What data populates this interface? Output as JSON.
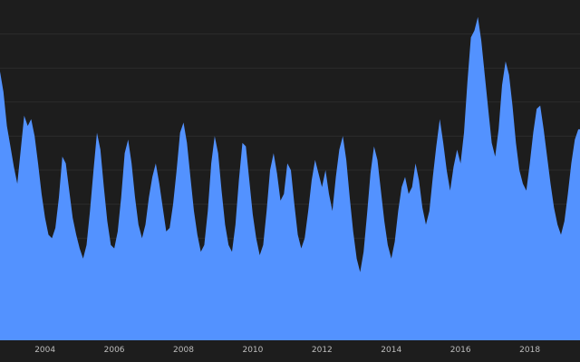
{
  "chart_data": {
    "type": "area",
    "title": "",
    "xlabel": "",
    "ylabel": "",
    "grid": true,
    "legend": "none",
    "colors": {
      "background": "#1d1d1d",
      "area_fill": "#5392ff",
      "gridline": "#2c2c2c",
      "axis_band": "#1d1d1d",
      "tick_text": "#bdbdbd"
    },
    "xlim": [
      2002.7,
      2019.45
    ],
    "ylim": [
      0,
      100
    ],
    "x_ticks": [
      {
        "x": 2004,
        "label": "2004"
      },
      {
        "x": 2006,
        "label": "2006"
      },
      {
        "x": 2008,
        "label": "2008"
      },
      {
        "x": 2010,
        "label": "2010"
      },
      {
        "x": 2012,
        "label": "2012"
      },
      {
        "x": 2014,
        "label": "2014"
      },
      {
        "x": 2016,
        "label": "2016"
      },
      {
        "x": 2018,
        "label": "2018"
      }
    ],
    "y_gridlines": [
      10,
      20,
      30,
      40,
      50,
      60,
      70,
      80,
      90
    ],
    "series": [
      {
        "values": [
          [
            2002.7,
            79
          ],
          [
            2002.8,
            73
          ],
          [
            2002.9,
            63
          ],
          [
            2003.0,
            57
          ],
          [
            2003.1,
            51
          ],
          [
            2003.2,
            46
          ],
          [
            2003.3,
            56
          ],
          [
            2003.4,
            66
          ],
          [
            2003.5,
            63
          ],
          [
            2003.6,
            65
          ],
          [
            2003.7,
            60
          ],
          [
            2003.8,
            52
          ],
          [
            2003.9,
            43
          ],
          [
            2004.0,
            36
          ],
          [
            2004.1,
            31
          ],
          [
            2004.2,
            30
          ],
          [
            2004.3,
            33
          ],
          [
            2004.4,
            42
          ],
          [
            2004.5,
            54
          ],
          [
            2004.6,
            52
          ],
          [
            2004.7,
            44
          ],
          [
            2004.8,
            36
          ],
          [
            2004.9,
            31
          ],
          [
            2005.0,
            27
          ],
          [
            2005.1,
            24
          ],
          [
            2005.2,
            28
          ],
          [
            2005.3,
            38
          ],
          [
            2005.4,
            50
          ],
          [
            2005.5,
            61
          ],
          [
            2005.6,
            56
          ],
          [
            2005.7,
            45
          ],
          [
            2005.8,
            35
          ],
          [
            2005.9,
            28
          ],
          [
            2006.0,
            27
          ],
          [
            2006.1,
            32
          ],
          [
            2006.2,
            42
          ],
          [
            2006.3,
            55
          ],
          [
            2006.4,
            59
          ],
          [
            2006.5,
            52
          ],
          [
            2006.6,
            42
          ],
          [
            2006.7,
            34
          ],
          [
            2006.8,
            30
          ],
          [
            2006.9,
            34
          ],
          [
            2007.0,
            42
          ],
          [
            2007.1,
            48
          ],
          [
            2007.2,
            52
          ],
          [
            2007.3,
            46
          ],
          [
            2007.4,
            39
          ],
          [
            2007.5,
            32
          ],
          [
            2007.6,
            33
          ],
          [
            2007.7,
            40
          ],
          [
            2007.8,
            50
          ],
          [
            2007.9,
            61
          ],
          [
            2008.0,
            64
          ],
          [
            2008.1,
            58
          ],
          [
            2008.2,
            48
          ],
          [
            2008.3,
            38
          ],
          [
            2008.4,
            31
          ],
          [
            2008.5,
            26
          ],
          [
            2008.6,
            28
          ],
          [
            2008.7,
            38
          ],
          [
            2008.8,
            52
          ],
          [
            2008.9,
            60
          ],
          [
            2009.0,
            55
          ],
          [
            2009.1,
            44
          ],
          [
            2009.2,
            34
          ],
          [
            2009.3,
            28
          ],
          [
            2009.4,
            26
          ],
          [
            2009.5,
            34
          ],
          [
            2009.6,
            47
          ],
          [
            2009.7,
            58
          ],
          [
            2009.8,
            57
          ],
          [
            2009.9,
            47
          ],
          [
            2010.0,
            37
          ],
          [
            2010.1,
            30
          ],
          [
            2010.2,
            25
          ],
          [
            2010.3,
            28
          ],
          [
            2010.4,
            38
          ],
          [
            2010.5,
            50
          ],
          [
            2010.6,
            55
          ],
          [
            2010.7,
            49
          ],
          [
            2010.8,
            41
          ],
          [
            2010.9,
            43
          ],
          [
            2011.0,
            52
          ],
          [
            2011.1,
            50
          ],
          [
            2011.2,
            40
          ],
          [
            2011.3,
            31
          ],
          [
            2011.4,
            27
          ],
          [
            2011.5,
            30
          ],
          [
            2011.6,
            38
          ],
          [
            2011.7,
            47
          ],
          [
            2011.8,
            53
          ],
          [
            2011.9,
            49
          ],
          [
            2012.0,
            45
          ],
          [
            2012.1,
            50
          ],
          [
            2012.2,
            43
          ],
          [
            2012.3,
            38
          ],
          [
            2012.4,
            48
          ],
          [
            2012.5,
            56
          ],
          [
            2012.6,
            60
          ],
          [
            2012.7,
            53
          ],
          [
            2012.8,
            42
          ],
          [
            2012.9,
            32
          ],
          [
            2013.0,
            24
          ],
          [
            2013.1,
            20
          ],
          [
            2013.2,
            26
          ],
          [
            2013.3,
            37
          ],
          [
            2013.4,
            49
          ],
          [
            2013.5,
            57
          ],
          [
            2013.6,
            53
          ],
          [
            2013.7,
            44
          ],
          [
            2013.8,
            35
          ],
          [
            2013.9,
            28
          ],
          [
            2014.0,
            24
          ],
          [
            2014.1,
            29
          ],
          [
            2014.2,
            38
          ],
          [
            2014.3,
            45
          ],
          [
            2014.4,
            48
          ],
          [
            2014.5,
            43
          ],
          [
            2014.6,
            45
          ],
          [
            2014.7,
            52
          ],
          [
            2014.8,
            47
          ],
          [
            2014.9,
            39
          ],
          [
            2015.0,
            34
          ],
          [
            2015.1,
            38
          ],
          [
            2015.2,
            48
          ],
          [
            2015.3,
            57
          ],
          [
            2015.4,
            65
          ],
          [
            2015.5,
            58
          ],
          [
            2015.6,
            50
          ],
          [
            2015.7,
            44
          ],
          [
            2015.8,
            51
          ],
          [
            2015.9,
            56
          ],
          [
            2016.0,
            52
          ],
          [
            2016.1,
            61
          ],
          [
            2016.2,
            76
          ],
          [
            2016.3,
            89
          ],
          [
            2016.4,
            91
          ],
          [
            2016.5,
            95
          ],
          [
            2016.6,
            88
          ],
          [
            2016.7,
            78
          ],
          [
            2016.8,
            68
          ],
          [
            2016.9,
            58
          ],
          [
            2017.0,
            54
          ],
          [
            2017.1,
            62
          ],
          [
            2017.2,
            75
          ],
          [
            2017.3,
            82
          ],
          [
            2017.4,
            78
          ],
          [
            2017.5,
            69
          ],
          [
            2017.6,
            58
          ],
          [
            2017.7,
            50
          ],
          [
            2017.8,
            46
          ],
          [
            2017.9,
            44
          ],
          [
            2018.0,
            52
          ],
          [
            2018.1,
            61
          ],
          [
            2018.2,
            68
          ],
          [
            2018.3,
            69
          ],
          [
            2018.4,
            62
          ],
          [
            2018.5,
            54
          ],
          [
            2018.6,
            46
          ],
          [
            2018.7,
            39
          ],
          [
            2018.8,
            34
          ],
          [
            2018.9,
            31
          ],
          [
            2019.0,
            35
          ],
          [
            2019.1,
            43
          ],
          [
            2019.2,
            52
          ],
          [
            2019.3,
            59
          ],
          [
            2019.4,
            62
          ],
          [
            2019.45,
            62
          ]
        ]
      }
    ]
  }
}
